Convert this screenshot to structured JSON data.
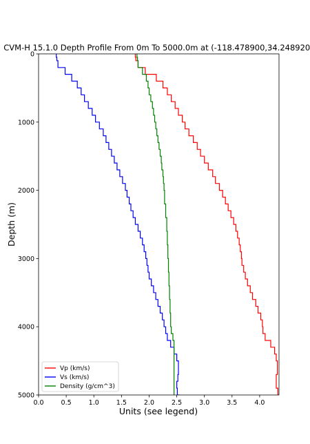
{
  "chart_data": {
    "type": "line",
    "title": "CVM-H 15.1.0 Depth Profile From 0m To 5000.0m at (-118.478900,34.248920)",
    "xlabel": "Units (see legend)",
    "ylabel": "Depth (m)",
    "xlim": [
      0.0,
      4.35
    ],
    "ylim": [
      5000,
      0
    ],
    "y_inverted": true,
    "xticks": [
      "0.0",
      "0.5",
      "1.0",
      "1.5",
      "2.0",
      "2.5",
      "3.0",
      "3.5",
      "4.0"
    ],
    "xtick_values": [
      0.0,
      0.5,
      1.0,
      1.5,
      2.0,
      2.5,
      3.0,
      3.5,
      4.0
    ],
    "yticks": [
      "0",
      "1000",
      "2000",
      "3000",
      "4000",
      "5000"
    ],
    "ytick_values": [
      0,
      1000,
      2000,
      3000,
      4000,
      5000
    ],
    "grid": false,
    "legend_position": "lower-left",
    "line_style": "steps",
    "series": [
      {
        "name": "Vp (km/s)",
        "color": "#ff0000",
        "depth": [
          0,
          50,
          100,
          200,
          300,
          400,
          500,
          600,
          700,
          800,
          900,
          1000,
          1100,
          1200,
          1300,
          1400,
          1500,
          1600,
          1700,
          1800,
          1900,
          2000,
          2100,
          2200,
          2300,
          2400,
          2500,
          2600,
          2700,
          2800,
          2900,
          3000,
          3100,
          3200,
          3300,
          3400,
          3500,
          3600,
          3700,
          3800,
          3900,
          4000,
          4100,
          4200,
          4300,
          4400,
          4500,
          4600,
          4700,
          4800,
          4900,
          5000
        ],
        "values": [
          1.75,
          1.76,
          1.8,
          1.93,
          2.13,
          2.25,
          2.33,
          2.4,
          2.47,
          2.53,
          2.6,
          2.65,
          2.72,
          2.8,
          2.87,
          2.93,
          3.0,
          3.07,
          3.15,
          3.2,
          3.27,
          3.33,
          3.38,
          3.43,
          3.48,
          3.53,
          3.57,
          3.6,
          3.63,
          3.65,
          3.67,
          3.68,
          3.71,
          3.74,
          3.78,
          3.83,
          3.87,
          3.93,
          3.97,
          4.02,
          4.05,
          4.06,
          4.1,
          4.2,
          4.27,
          4.3,
          4.32,
          4.32,
          4.3,
          4.3,
          4.33,
          4.35
        ]
      },
      {
        "name": "Vs (km/s)",
        "color": "#0000ff",
        "depth": [
          0,
          50,
          100,
          200,
          300,
          400,
          500,
          600,
          700,
          800,
          900,
          1000,
          1100,
          1200,
          1300,
          1400,
          1500,
          1600,
          1700,
          1800,
          1900,
          2000,
          2100,
          2200,
          2300,
          2400,
          2500,
          2600,
          2700,
          2800,
          2900,
          3000,
          3100,
          3200,
          3300,
          3400,
          3500,
          3600,
          3700,
          3800,
          3900,
          4000,
          4100,
          4200,
          4300,
          4400,
          4500,
          4600,
          4700,
          4800,
          4900,
          5000
        ],
        "values": [
          0.32,
          0.33,
          0.35,
          0.48,
          0.6,
          0.7,
          0.77,
          0.83,
          0.9,
          0.97,
          1.03,
          1.1,
          1.17,
          1.22,
          1.27,
          1.32,
          1.37,
          1.42,
          1.47,
          1.52,
          1.57,
          1.6,
          1.64,
          1.67,
          1.71,
          1.75,
          1.8,
          1.84,
          1.88,
          1.91,
          1.94,
          1.96,
          1.98,
          2.0,
          2.04,
          2.08,
          2.12,
          2.16,
          2.2,
          2.24,
          2.27,
          2.3,
          2.33,
          2.39,
          2.45,
          2.5,
          2.53,
          2.53,
          2.52,
          2.5,
          2.51,
          2.55
        ]
      },
      {
        "name": "Density (g/cm^3)",
        "color": "#008000",
        "depth": [
          0,
          50,
          100,
          200,
          300,
          400,
          500,
          600,
          700,
          800,
          900,
          1000,
          1100,
          1200,
          1300,
          1400,
          1500,
          1600,
          1700,
          1800,
          1900,
          2000,
          2200,
          2400,
          2600,
          2800,
          3000,
          3200,
          3400,
          3600,
          3800,
          4000,
          4100,
          4200,
          4400,
          4600,
          4800,
          5000
        ],
        "values": [
          1.78,
          1.79,
          1.8,
          1.88,
          1.95,
          1.98,
          2.0,
          2.03,
          2.06,
          2.08,
          2.1,
          2.12,
          2.14,
          2.16,
          2.18,
          2.2,
          2.22,
          2.23,
          2.25,
          2.26,
          2.27,
          2.28,
          2.3,
          2.32,
          2.33,
          2.34,
          2.35,
          2.36,
          2.37,
          2.38,
          2.39,
          2.4,
          2.43,
          2.45,
          2.45,
          2.45,
          2.45,
          2.45
        ]
      }
    ]
  }
}
